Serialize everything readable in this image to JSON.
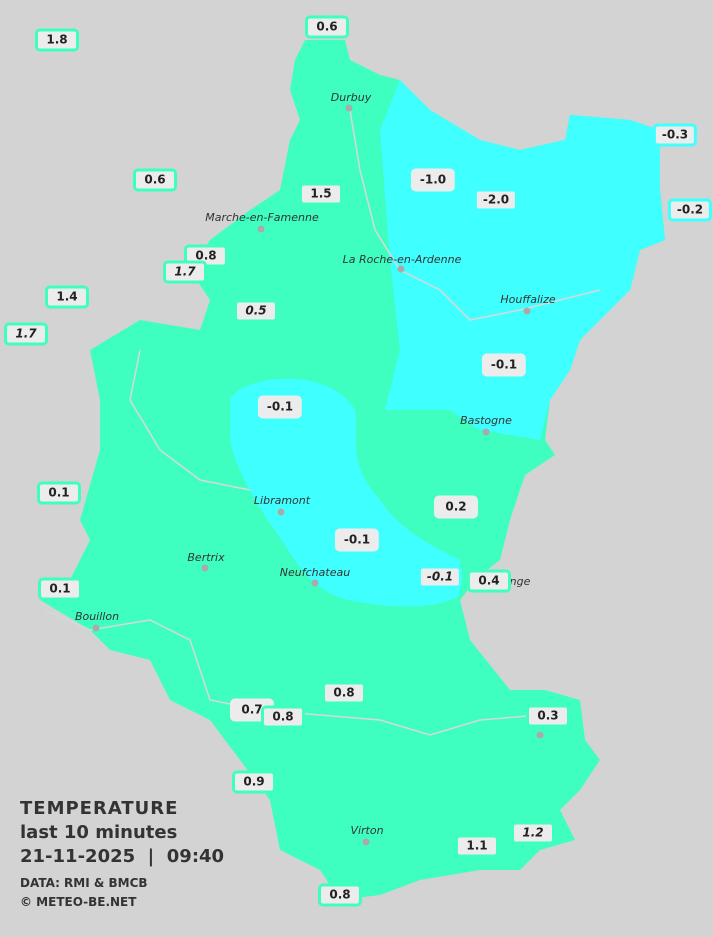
{
  "legend": {
    "title": "TEMPERATURE",
    "period": "last 10 minutes",
    "datetime": "21-11-2025  |  09:40",
    "source": "DATA: RMI & BMCB",
    "copyright": "© METEO-BE.NET"
  },
  "colors": {
    "background": "#d3d3d3",
    "zone_warm": "#3effc0",
    "zone_cold": "#40ffff",
    "river": "#d8d8d8"
  },
  "cities": [
    "Durbuy",
    "Marche-en-Famenne",
    "La Roche-en-Ardenne",
    "Houffalize",
    "Bastogne",
    "Libramont",
    "Bertrix",
    "Neufchateau",
    "Bouillon",
    "Virton",
    "nge"
  ],
  "stations": [
    {
      "value": "1.8",
      "italic": false,
      "zone": "warm"
    },
    {
      "value": "0.6",
      "italic": false,
      "zone": "warm"
    },
    {
      "value": "0.6",
      "italic": false,
      "zone": "warm"
    },
    {
      "value": "1.5",
      "italic": false,
      "zone": "warm"
    },
    {
      "value": "-1.0",
      "italic": false,
      "zone": "none"
    },
    {
      "value": "-2.0",
      "italic": false,
      "zone": "cold"
    },
    {
      "value": "-0.3",
      "italic": false,
      "zone": "cold"
    },
    {
      "value": "-0.2",
      "italic": false,
      "zone": "cold"
    },
    {
      "value": "0.8",
      "italic": false,
      "zone": "warm"
    },
    {
      "value": "1.7",
      "italic": true,
      "zone": "warm"
    },
    {
      "value": "1.4",
      "italic": false,
      "zone": "warm"
    },
    {
      "value": "1.7",
      "italic": true,
      "zone": "warm"
    },
    {
      "value": "0.5",
      "italic": true,
      "zone": "warm"
    },
    {
      "value": "-0.1",
      "italic": false,
      "zone": "none"
    },
    {
      "value": "-0.1",
      "italic": false,
      "zone": "none"
    },
    {
      "value": "0.1",
      "italic": false,
      "zone": "warm"
    },
    {
      "value": "0.2",
      "italic": false,
      "zone": "warm"
    },
    {
      "value": "-0.1",
      "italic": false,
      "zone": "none"
    },
    {
      "value": "-0.1",
      "italic": true,
      "zone": "cold"
    },
    {
      "value": "0.4",
      "italic": false,
      "zone": "warm"
    },
    {
      "value": "0.1",
      "italic": false,
      "zone": "warm"
    },
    {
      "value": "0.8",
      "italic": false,
      "zone": "warm"
    },
    {
      "value": "0.7",
      "italic": false,
      "zone": "none"
    },
    {
      "value": "0.8",
      "italic": false,
      "zone": "warm"
    },
    {
      "value": "0.3",
      "italic": false,
      "zone": "warm"
    },
    {
      "value": "0.9",
      "italic": false,
      "zone": "warm"
    },
    {
      "value": "1.1",
      "italic": false,
      "zone": "warm"
    },
    {
      "value": "1.2",
      "italic": true,
      "zone": "warm"
    },
    {
      "value": "0.8",
      "italic": false,
      "zone": "warm"
    }
  ]
}
